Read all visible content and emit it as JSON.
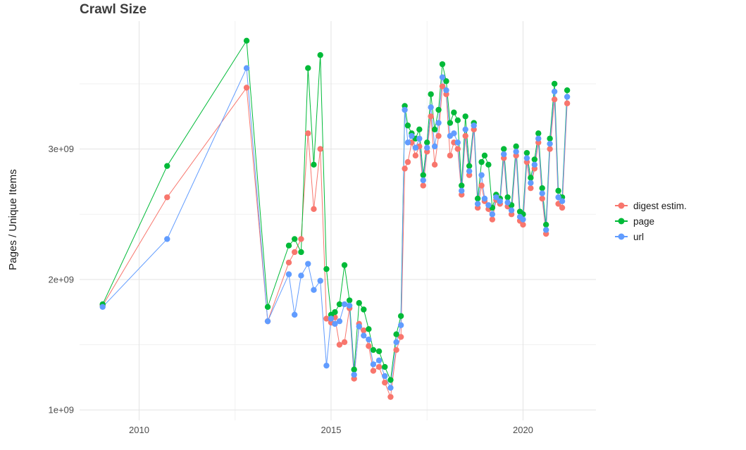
{
  "chart_data": {
    "type": "line",
    "title": "Crawl Size",
    "xlabel": "",
    "ylabel": "Pages / Unique Items",
    "legend_position": "right",
    "background_color": "#ffffff",
    "major_grid_color": "#e3e3e3",
    "minor_grid_color": "#f1f1f1",
    "xlim": [
      2008.45,
      2021.9
    ],
    "ylim": [
      920000000.0,
      3980000000.0
    ],
    "x_ticks": [
      {
        "value": 2010,
        "label": "2010"
      },
      {
        "value": 2015,
        "label": "2015"
      },
      {
        "value": 2020,
        "label": "2020"
      }
    ],
    "y_ticks": [
      {
        "value": 1000000000.0,
        "label": "1e+09"
      },
      {
        "value": 2000000000.0,
        "label": "2e+09"
      },
      {
        "value": 3000000000.0,
        "label": "3e+09"
      }
    ],
    "x_minor_gridlines": [
      2012.5,
      2017.5
    ],
    "y_minor_gridlines": [
      1500000000.0,
      2500000000.0,
      3500000000.0
    ],
    "x": [
      2009.05,
      2010.73,
      2012.8,
      2013.35,
      2013.9,
      2014.05,
      2014.22,
      2014.4,
      2014.55,
      2014.72,
      2014.88,
      2015.0,
      2015.1,
      2015.22,
      2015.35,
      2015.48,
      2015.6,
      2015.73,
      2015.85,
      2015.98,
      2016.1,
      2016.25,
      2016.4,
      2016.55,
      2016.7,
      2016.82,
      2016.92,
      2017.0,
      2017.1,
      2017.2,
      2017.3,
      2017.4,
      2017.5,
      2017.6,
      2017.7,
      2017.8,
      2017.9,
      2018.0,
      2018.1,
      2018.2,
      2018.3,
      2018.4,
      2018.5,
      2018.6,
      2018.72,
      2018.82,
      2018.92,
      2019.0,
      2019.1,
      2019.2,
      2019.3,
      2019.4,
      2019.5,
      2019.6,
      2019.7,
      2019.82,
      2019.92,
      2020.0,
      2020.1,
      2020.2,
      2020.3,
      2020.4,
      2020.5,
      2020.6,
      2020.7,
      2020.82,
      2020.92,
      2021.02,
      2021.15
    ],
    "series": [
      {
        "name": "digest estim.",
        "color": "#F8766D",
        "values": [
          1800000000.0,
          2630000000.0,
          3470000000.0,
          1680000000.0,
          2130000000.0,
          2210000000.0,
          2310000000.0,
          3120000000.0,
          2540000000.0,
          3000000000.0,
          1700000000.0,
          1670000000.0,
          1710000000.0,
          1500000000.0,
          1520000000.0,
          1780000000.0,
          1240000000.0,
          1660000000.0,
          1610000000.0,
          1490000000.0,
          1300000000.0,
          1330000000.0,
          1210000000.0,
          1100000000.0,
          1460000000.0,
          1560000000.0,
          2850000000.0,
          2900000000.0,
          3050000000.0,
          2950000000.0,
          3020000000.0,
          2720000000.0,
          2980000000.0,
          3250000000.0,
          2880000000.0,
          3100000000.0,
          3480000000.0,
          3420000000.0,
          2950000000.0,
          3050000000.0,
          3000000000.0,
          2650000000.0,
          3100000000.0,
          2800000000.0,
          3150000000.0,
          2550000000.0,
          2720000000.0,
          2600000000.0,
          2540000000.0,
          2460000000.0,
          2610000000.0,
          2580000000.0,
          2930000000.0,
          2560000000.0,
          2500000000.0,
          2950000000.0,
          2450000000.0,
          2420000000.0,
          2900000000.0,
          2700000000.0,
          2850000000.0,
          3050000000.0,
          2620000000.0,
          2350000000.0,
          3000000000.0,
          3380000000.0,
          2580000000.0,
          2550000000.0,
          3350000000.0
        ]
      },
      {
        "name": "page",
        "color": "#00BA38",
        "values": [
          1810000000.0,
          2870000000.0,
          3830000000.0,
          1790000000.0,
          2260000000.0,
          2310000000.0,
          2210000000.0,
          3620000000.0,
          2880000000.0,
          3720000000.0,
          2080000000.0,
          1730000000.0,
          1750000000.0,
          1810000000.0,
          2110000000.0,
          1840000000.0,
          1310000000.0,
          1820000000.0,
          1770000000.0,
          1620000000.0,
          1460000000.0,
          1450000000.0,
          1330000000.0,
          1230000000.0,
          1580000000.0,
          1720000000.0,
          3330000000.0,
          3180000000.0,
          3120000000.0,
          3080000000.0,
          3150000000.0,
          2800000000.0,
          3050000000.0,
          3420000000.0,
          3150000000.0,
          3300000000.0,
          3650000000.0,
          3520000000.0,
          3200000000.0,
          3280000000.0,
          3220000000.0,
          2720000000.0,
          3250000000.0,
          2870000000.0,
          3200000000.0,
          2620000000.0,
          2900000000.0,
          2950000000.0,
          2880000000.0,
          2550000000.0,
          2650000000.0,
          2620000000.0,
          3000000000.0,
          2630000000.0,
          2570000000.0,
          3020000000.0,
          2520000000.0,
          2500000000.0,
          2970000000.0,
          2780000000.0,
          2920000000.0,
          3120000000.0,
          2700000000.0,
          2420000000.0,
          3080000000.0,
          3500000000.0,
          2680000000.0,
          2630000000.0,
          3450000000.0
        ]
      },
      {
        "name": "url",
        "color": "#619CFF",
        "values": [
          1790000000.0,
          2310000000.0,
          3620000000.0,
          1680000000.0,
          2040000000.0,
          1730000000.0,
          2030000000.0,
          2120000000.0,
          1920000000.0,
          1990000000.0,
          1340000000.0,
          1700000000.0,
          1660000000.0,
          1680000000.0,
          1810000000.0,
          1800000000.0,
          1270000000.0,
          1640000000.0,
          1570000000.0,
          1540000000.0,
          1350000000.0,
          1380000000.0,
          1260000000.0,
          1170000000.0,
          1520000000.0,
          1650000000.0,
          3300000000.0,
          3050000000.0,
          3100000000.0,
          3010000000.0,
          3080000000.0,
          2760000000.0,
          3010000000.0,
          3320000000.0,
          3020000000.0,
          3200000000.0,
          3550000000.0,
          3450000000.0,
          3100000000.0,
          3120000000.0,
          3050000000.0,
          2680000000.0,
          3150000000.0,
          2830000000.0,
          3180000000.0,
          2580000000.0,
          2800000000.0,
          2620000000.0,
          2570000000.0,
          2500000000.0,
          2630000000.0,
          2600000000.0,
          2960000000.0,
          2590000000.0,
          2530000000.0,
          2980000000.0,
          2480000000.0,
          2460000000.0,
          2930000000.0,
          2740000000.0,
          2880000000.0,
          3080000000.0,
          2660000000.0,
          2380000000.0,
          3040000000.0,
          3440000000.0,
          2630000000.0,
          2600000000.0,
          3400000000.0
        ]
      }
    ]
  }
}
